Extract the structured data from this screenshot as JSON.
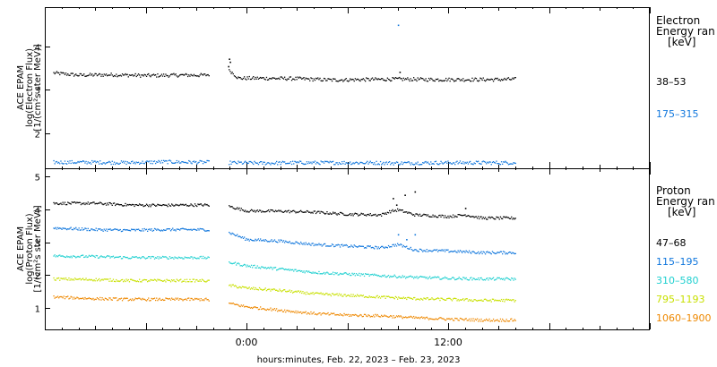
{
  "footer": {
    "xlabel": "hours:minutes, Feb. 22, 2023 – Feb. 23, 2023"
  },
  "chart_data": [
    {
      "type": "scatter",
      "panel": "electron",
      "ylabel_lines": [
        "ACE EPAM",
        "log(Electron Flux)",
        "[1/(cm²s ster MeV)]"
      ],
      "xlim": [
        -12,
        24
      ],
      "ylim": [
        1.2,
        4.9
      ],
      "x_ticks": [
        "0:00",
        "12:00"
      ],
      "x_tick_values": [
        0,
        12
      ],
      "y_ticks": [
        2,
        3,
        4
      ],
      "legend_title": [
        "Electron",
        "Energy ran",
        "[keV]"
      ],
      "legend_position": "right",
      "data_gap": [
        -2.2,
        -1.1
      ],
      "series": [
        {
          "name": "38–53",
          "color": "#000000",
          "x": [
            -11.5,
            -10,
            -8,
            -6,
            -4,
            -2.5,
            -1,
            -0.5,
            1,
            3,
            5,
            7,
            9,
            11,
            13,
            15,
            16
          ],
          "y": [
            3.4,
            3.35,
            3.36,
            3.34,
            3.35,
            3.35,
            3.45,
            3.28,
            3.28,
            3.27,
            3.24,
            3.25,
            3.26,
            3.25,
            3.25,
            3.25,
            3.26
          ],
          "outliers": [
            [
              -1.1,
              3.55
            ],
            [
              -1.05,
              3.72
            ],
            [
              -1.0,
              3.65
            ],
            [
              9.1,
              3.42
            ]
          ]
        },
        {
          "name": "175–315",
          "color": "#1177dd",
          "x": [
            -11.5,
            -9,
            -7,
            -5,
            -3,
            -2.5,
            -1,
            1,
            3,
            5,
            7,
            9,
            11,
            13,
            15,
            16
          ],
          "y": [
            1.35,
            1.35,
            1.34,
            1.36,
            1.35,
            1.35,
            1.34,
            1.33,
            1.34,
            1.34,
            1.34,
            1.33,
            1.34,
            1.34,
            1.34,
            1.34
          ],
          "outliers": [
            [
              9.0,
              4.5
            ]
          ]
        }
      ]
    },
    {
      "type": "scatter",
      "panel": "proton",
      "ylabel_lines": [
        "ACE EPAM",
        "log(Proton Flux)",
        "[1/(cm²s ster MeV)]"
      ],
      "xlim": [
        -12,
        24
      ],
      "ylim": [
        0.35,
        5.25
      ],
      "x_ticks": [
        "0:00",
        "12:00"
      ],
      "x_tick_values": [
        0,
        12
      ],
      "y_ticks": [
        1,
        2,
        3,
        4,
        5
      ],
      "legend_title": [
        "Proton",
        "Energy ran",
        "[keV]"
      ],
      "legend_position": "right",
      "data_gap": [
        -2.2,
        -1.1
      ],
      "series": [
        {
          "name": "47–68",
          "color": "#000000",
          "x": [
            -11.5,
            -9,
            -7,
            -5,
            -3,
            -2.5,
            -1,
            0,
            2,
            4,
            6,
            8,
            8.5,
            9,
            10,
            12,
            13,
            14,
            16
          ],
          "y": [
            4.2,
            4.2,
            4.15,
            4.14,
            4.15,
            4.15,
            4.1,
            3.97,
            3.96,
            3.93,
            3.87,
            3.85,
            3.95,
            4.0,
            3.85,
            3.8,
            3.85,
            3.75,
            3.75
          ],
          "outliers": [
            [
              8.7,
              4.35
            ],
            [
              8.9,
              4.15
            ],
            [
              9.4,
              4.45
            ],
            [
              10.0,
              4.55
            ],
            [
              13.0,
              4.05
            ]
          ]
        },
        {
          "name": "115–195",
          "color": "#1177dd",
          "x": [
            -11.5,
            -9,
            -7,
            -5,
            -3,
            -2.5,
            -1,
            0,
            2,
            4,
            6,
            8,
            9,
            10,
            12,
            14,
            16
          ],
          "y": [
            3.45,
            3.4,
            3.38,
            3.4,
            3.4,
            3.4,
            3.3,
            3.1,
            3.05,
            2.95,
            2.9,
            2.85,
            2.95,
            2.78,
            2.75,
            2.7,
            2.7
          ],
          "outliers": [
            [
              9.0,
              3.25
            ],
            [
              9.5,
              3.1
            ],
            [
              10.0,
              3.25
            ]
          ]
        },
        {
          "name": "310–580",
          "color": "#20d0d0",
          "x": [
            -11.5,
            -9,
            -7,
            -5,
            -3,
            -2.5,
            -1,
            0,
            2,
            4,
            6,
            8,
            10,
            12,
            14,
            16
          ],
          "y": [
            2.6,
            2.58,
            2.55,
            2.55,
            2.55,
            2.55,
            2.4,
            2.3,
            2.2,
            2.1,
            2.05,
            2.0,
            1.95,
            1.92,
            1.9,
            1.9
          ]
        },
        {
          "name": "795–1193",
          "color": "#c8e000",
          "x": [
            -11.5,
            -9,
            -7,
            -5,
            -3,
            -2.5,
            -1,
            0,
            2,
            4,
            6,
            8,
            10,
            12,
            14,
            16
          ],
          "y": [
            1.9,
            1.88,
            1.85,
            1.85,
            1.85,
            1.85,
            1.7,
            1.62,
            1.55,
            1.45,
            1.4,
            1.35,
            1.3,
            1.28,
            1.25,
            1.25
          ]
        },
        {
          "name": "1060–1900",
          "color": "#ee8800",
          "x": [
            -11.5,
            -9,
            -7,
            -5,
            -3,
            -2.5,
            -1,
            0,
            2,
            4,
            6,
            8,
            10,
            12,
            14,
            16
          ],
          "y": [
            1.35,
            1.3,
            1.28,
            1.28,
            1.28,
            1.28,
            1.15,
            1.05,
            0.95,
            0.85,
            0.8,
            0.78,
            0.72,
            0.68,
            0.65,
            0.65
          ]
        }
      ]
    }
  ]
}
